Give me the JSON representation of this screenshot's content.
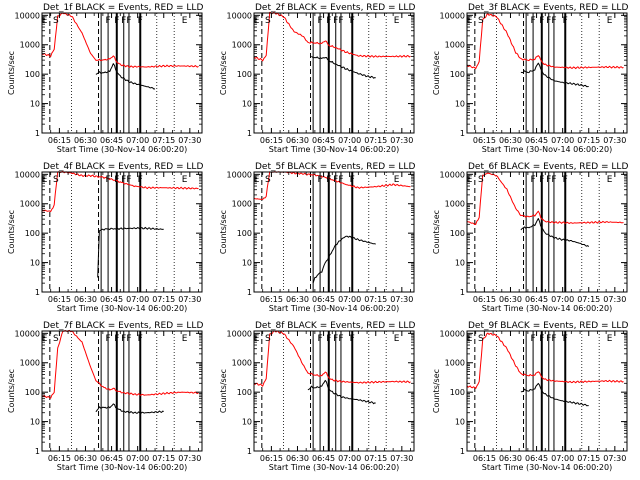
{
  "figure": {
    "xtick_labels": [
      "06:15",
      "06:30",
      "06:45",
      "07:00",
      "07:15",
      "07:30"
    ],
    "ytick_labels": [
      "1",
      "10",
      "100",
      "1000",
      "10000"
    ],
    "colors": {
      "events": "#000000",
      "lld": "#ff0000",
      "markers": "#000000"
    }
  },
  "chart_data": [
    {
      "type": "line",
      "title": "Det_1f BLACK = Events, RED = LLD",
      "xlabel": "Start Time (30-Nov-14 06:00:20)",
      "ylabel": "Counts/sec",
      "xlim": [
        "06:05",
        "07:37"
      ],
      "ylim": [
        1,
        12000
      ],
      "yscale": "log",
      "grid": false,
      "flags": [
        "E",
        "S",
        "F",
        "F",
        "F",
        "F",
        "F",
        "E"
      ],
      "series": [
        {
          "color": "red",
          "x": [
            "06:05",
            "06:10",
            "06:12",
            "06:14",
            "06:17",
            "06:22",
            "06:28",
            "06:33",
            "06:36",
            "06:40",
            "06:44",
            "06:46",
            "06:48",
            "06:50",
            "06:55",
            "07:00",
            "07:05",
            "07:15",
            "07:25",
            "07:35"
          ],
          "values": [
            500,
            420,
            700,
            9000,
            12000,
            9500,
            2500,
            500,
            300,
            300,
            330,
            420,
            260,
            210,
            180,
            180,
            175,
            190,
            190,
            185
          ]
        },
        {
          "color": "black",
          "x": [
            "06:36",
            "06:38",
            "06:40",
            "06:44",
            "06:46",
            "06:48",
            "06:50",
            "06:55",
            "07:00",
            "07:05",
            "07:10"
          ],
          "values": [
            100,
            115,
            110,
            125,
            230,
            120,
            85,
            55,
            45,
            38,
            32
          ]
        }
      ]
    },
    {
      "type": "line",
      "title": "Det_2f BLACK = Events, RED = LLD",
      "xlabel": "Start Time (30-Nov-14 06:00:20)",
      "ylabel": "Counts/sec",
      "xlim": [
        "06:05",
        "07:37"
      ],
      "ylim": [
        1,
        12000
      ],
      "yscale": "log",
      "grid": false,
      "flags": [
        "E",
        "S",
        "F",
        "F",
        "F",
        "F",
        "F",
        "E"
      ],
      "series": [
        {
          "color": "red",
          "x": [
            "06:05",
            "06:10",
            "06:12",
            "06:14",
            "06:17",
            "06:22",
            "06:28",
            "06:33",
            "06:36",
            "06:40",
            "06:44",
            "06:46",
            "06:48",
            "06:52",
            "06:58",
            "07:05",
            "07:15",
            "07:25",
            "07:35"
          ],
          "values": [
            380,
            300,
            420,
            12000,
            12000,
            9000,
            2800,
            2000,
            1200,
            1150,
            1100,
            1400,
            950,
            800,
            560,
            420,
            400,
            400,
            410
          ]
        },
        {
          "color": "black",
          "x": [
            "06:38",
            "06:42",
            "06:44",
            "06:46",
            "06:48",
            "06:52",
            "06:58",
            "07:05",
            "07:10",
            "07:15"
          ],
          "values": [
            380,
            360,
            340,
            380,
            290,
            220,
            150,
            105,
            85,
            75
          ]
        }
      ]
    },
    {
      "type": "line",
      "title": "Det_3f BLACK = Events, RED = LLD",
      "xlabel": "Start Time (30-Nov-14 06:00:20)",
      "ylabel": "Counts/sec",
      "xlim": [
        "06:05",
        "07:37"
      ],
      "ylim": [
        1,
        12000
      ],
      "yscale": "log",
      "grid": false,
      "flags": [
        "E",
        "S",
        "F",
        "F",
        "F",
        "F",
        "F",
        "E"
      ],
      "series": [
        {
          "color": "red",
          "x": [
            "06:05",
            "06:10",
            "06:12",
            "06:14",
            "06:17",
            "06:22",
            "06:28",
            "06:33",
            "06:36",
            "06:40",
            "06:44",
            "06:46",
            "06:48",
            "06:50",
            "06:55",
            "07:00",
            "07:05",
            "07:15",
            "07:25",
            "07:35"
          ],
          "values": [
            200,
            160,
            260,
            7000,
            11000,
            9000,
            2500,
            550,
            330,
            300,
            320,
            450,
            260,
            210,
            175,
            170,
            165,
            170,
            175,
            170
          ]
        },
        {
          "color": "black",
          "x": [
            "06:36",
            "06:38",
            "06:40",
            "06:44",
            "06:46",
            "06:48",
            "06:50",
            "06:55",
            "07:00",
            "07:05",
            "07:10",
            "07:15"
          ],
          "values": [
            110,
            125,
            115,
            140,
            250,
            125,
            90,
            60,
            52,
            48,
            43,
            38
          ]
        }
      ]
    },
    {
      "type": "line",
      "title": "Det_4f BLACK = Events, RED = LLD",
      "xlabel": "Start Time (30-Nov-14 06:00:20)",
      "ylabel": "Counts/sec",
      "xlim": [
        "06:05",
        "07:37"
      ],
      "ylim": [
        1,
        12000
      ],
      "yscale": "log",
      "grid": false,
      "flags": [
        "E",
        "S",
        "F",
        "F",
        "F",
        "F",
        "F",
        "E"
      ],
      "series": [
        {
          "color": "red",
          "x": [
            "06:05",
            "06:10",
            "06:12",
            "06:14",
            "06:17",
            "06:22",
            "06:28",
            "06:33",
            "06:36",
            "06:40",
            "06:44",
            "06:48",
            "06:52",
            "06:58",
            "07:05",
            "07:15",
            "07:25",
            "07:35"
          ],
          "values": [
            600,
            550,
            900,
            12000,
            12000,
            11000,
            9000,
            9000,
            8500,
            8000,
            7000,
            6000,
            5000,
            4000,
            3500,
            3500,
            3400,
            3300
          ]
        },
        {
          "color": "black",
          "x": [
            "06:37",
            "06:38",
            "06:40",
            "06:44",
            "06:48",
            "06:55",
            "07:00",
            "07:05",
            "07:10",
            "07:15"
          ],
          "values": [
            3,
            120,
            135,
            140,
            142,
            145,
            148,
            146,
            140,
            135
          ]
        }
      ]
    },
    {
      "type": "line",
      "title": "Det_5f BLACK = Events, RED = LLD",
      "xlabel": "Start Time (30-Nov-14 06:00:20)",
      "ylabel": "Counts/sec",
      "xlim": [
        "06:05",
        "07:37"
      ],
      "ylim": [
        1,
        12000
      ],
      "yscale": "log",
      "grid": false,
      "flags": [
        "E",
        "S",
        "F",
        "F",
        "F",
        "F",
        "F",
        "E"
      ],
      "series": [
        {
          "color": "red",
          "x": [
            "06:05",
            "06:10",
            "06:12",
            "06:14",
            "06:17",
            "06:22",
            "06:28",
            "06:33",
            "06:36",
            "06:40",
            "06:44",
            "06:48",
            "06:52",
            "06:58",
            "07:05",
            "07:15",
            "07:25",
            "07:35"
          ],
          "values": [
            1500,
            1400,
            1800,
            12000,
            12000,
            12000,
            11000,
            10500,
            10000,
            9500,
            8500,
            7200,
            6000,
            4500,
            3500,
            3800,
            4500,
            3800
          ]
        },
        {
          "color": "black",
          "x": [
            "06:39",
            "06:40",
            "06:42",
            "06:44",
            "06:46",
            "06:48",
            "06:50",
            "06:52",
            "06:55",
            "06:58",
            "07:00",
            "07:05",
            "07:10",
            "07:15"
          ],
          "values": [
            2,
            3,
            4,
            5,
            10,
            15,
            25,
            40,
            60,
            80,
            75,
            60,
            50,
            42
          ]
        }
      ]
    },
    {
      "type": "line",
      "title": "Det_6f BLACK = Events, RED = LLD",
      "xlabel": "Start Time (30-Nov-14 06:00:20)",
      "ylabel": "Counts/sec",
      "xlim": [
        "06:05",
        "07:37"
      ],
      "ylim": [
        1,
        12000
      ],
      "yscale": "log",
      "grid": false,
      "flags": [
        "E",
        "S",
        "F",
        "F",
        "F",
        "F",
        "F",
        "E"
      ],
      "series": [
        {
          "color": "red",
          "x": [
            "06:05",
            "06:10",
            "06:12",
            "06:14",
            "06:17",
            "06:22",
            "06:28",
            "06:33",
            "06:36",
            "06:40",
            "06:44",
            "06:46",
            "06:48",
            "06:50",
            "06:55",
            "07:00",
            "07:05",
            "07:15",
            "07:25",
            "07:35"
          ],
          "values": [
            250,
            200,
            350,
            9000,
            11000,
            9000,
            3000,
            700,
            400,
            360,
            400,
            550,
            300,
            250,
            230,
            230,
            220,
            230,
            240,
            230
          ]
        },
        {
          "color": "black",
          "x": [
            "06:36",
            "06:38",
            "06:40",
            "06:44",
            "06:46",
            "06:48",
            "06:50",
            "06:55",
            "07:00",
            "07:05",
            "07:10",
            "07:15"
          ],
          "values": [
            130,
            160,
            150,
            190,
            310,
            150,
            100,
            70,
            60,
            55,
            45,
            35
          ]
        }
      ]
    },
    {
      "type": "line",
      "title": "Det_7f BLACK = Events, RED = LLD",
      "xlabel": "Start Time (30-Nov-14 06:00:20)",
      "ylabel": "Counts/sec",
      "xlim": [
        "06:05",
        "07:37"
      ],
      "ylim": [
        1,
        12000
      ],
      "yscale": "log",
      "grid": false,
      "flags": [
        "E",
        "S",
        "F",
        "F",
        "F",
        "F",
        "F",
        "E"
      ],
      "series": [
        {
          "color": "red",
          "x": [
            "06:05",
            "06:10",
            "06:12",
            "06:14",
            "06:17",
            "06:22",
            "06:28",
            "06:33",
            "06:36",
            "06:40",
            "06:44",
            "06:46",
            "06:48",
            "06:52",
            "06:58",
            "07:05",
            "07:15",
            "07:25",
            "07:35"
          ],
          "values": [
            75,
            65,
            100,
            3000,
            12000,
            12000,
            5000,
            700,
            250,
            150,
            120,
            135,
            110,
            95,
            85,
            80,
            90,
            100,
            95
          ]
        },
        {
          "color": "black",
          "x": [
            "06:36",
            "06:38",
            "06:40",
            "06:44",
            "06:46",
            "06:48",
            "06:52",
            "06:58",
            "07:05",
            "07:10",
            "07:15"
          ],
          "values": [
            22,
            30,
            30,
            30,
            40,
            28,
            22,
            20,
            20,
            21,
            22
          ]
        }
      ]
    },
    {
      "type": "line",
      "title": "Det_8f BLACK = Events, RED = LLD",
      "xlabel": "Start Time (30-Nov-14 06:00:20)",
      "ylabel": "Counts/sec",
      "xlim": [
        "06:05",
        "07:37"
      ],
      "ylim": [
        1,
        12000
      ],
      "yscale": "log",
      "grid": false,
      "flags": [
        "E",
        "S",
        "F",
        "F",
        "F",
        "F",
        "F",
        "E"
      ],
      "series": [
        {
          "color": "red",
          "x": [
            "06:05",
            "06:10",
            "06:12",
            "06:14",
            "06:17",
            "06:22",
            "06:28",
            "06:33",
            "06:36",
            "06:40",
            "06:44",
            "06:46",
            "06:48",
            "06:50",
            "06:55",
            "07:00",
            "07:05",
            "07:15",
            "07:25",
            "07:35"
          ],
          "values": [
            200,
            170,
            280,
            9000,
            12000,
            10000,
            3500,
            900,
            450,
            380,
            360,
            500,
            310,
            260,
            230,
            220,
            210,
            220,
            230,
            225
          ]
        },
        {
          "color": "black",
          "x": [
            "06:36",
            "06:38",
            "06:40",
            "06:44",
            "06:46",
            "06:48",
            "06:50",
            "06:55",
            "07:00",
            "07:05",
            "07:10",
            "07:15"
          ],
          "values": [
            120,
            150,
            140,
            160,
            260,
            130,
            100,
            70,
            60,
            55,
            48,
            42
          ]
        }
      ]
    },
    {
      "type": "line",
      "title": "Det_9f BLACK = Events, RED = LLD",
      "xlabel": "Start Time (30-Nov-14 06:00:20)",
      "ylabel": "Counts/sec",
      "xlim": [
        "06:05",
        "07:37"
      ],
      "ylim": [
        1,
        12000
      ],
      "yscale": "log",
      "grid": false,
      "flags": [
        "E",
        "S",
        "F",
        "F",
        "F",
        "F",
        "F",
        "E"
      ],
      "series": [
        {
          "color": "red",
          "x": [
            "06:05",
            "06:10",
            "06:12",
            "06:14",
            "06:17",
            "06:22",
            "06:28",
            "06:33",
            "06:36",
            "06:40",
            "06:44",
            "06:46",
            "06:48",
            "06:50",
            "06:55",
            "07:00",
            "07:05",
            "07:15",
            "07:25",
            "07:35"
          ],
          "values": [
            160,
            140,
            220,
            6000,
            10000,
            8500,
            3000,
            800,
            420,
            370,
            380,
            520,
            320,
            270,
            240,
            230,
            220,
            230,
            240,
            230
          ]
        },
        {
          "color": "black",
          "x": [
            "06:36",
            "06:38",
            "06:40",
            "06:44",
            "06:46",
            "06:48",
            "06:50",
            "06:55",
            "07:00",
            "07:05",
            "07:10",
            "07:15"
          ],
          "values": [
            100,
            120,
            110,
            130,
            210,
            110,
            85,
            60,
            50,
            45,
            40,
            35
          ]
        }
      ]
    }
  ]
}
